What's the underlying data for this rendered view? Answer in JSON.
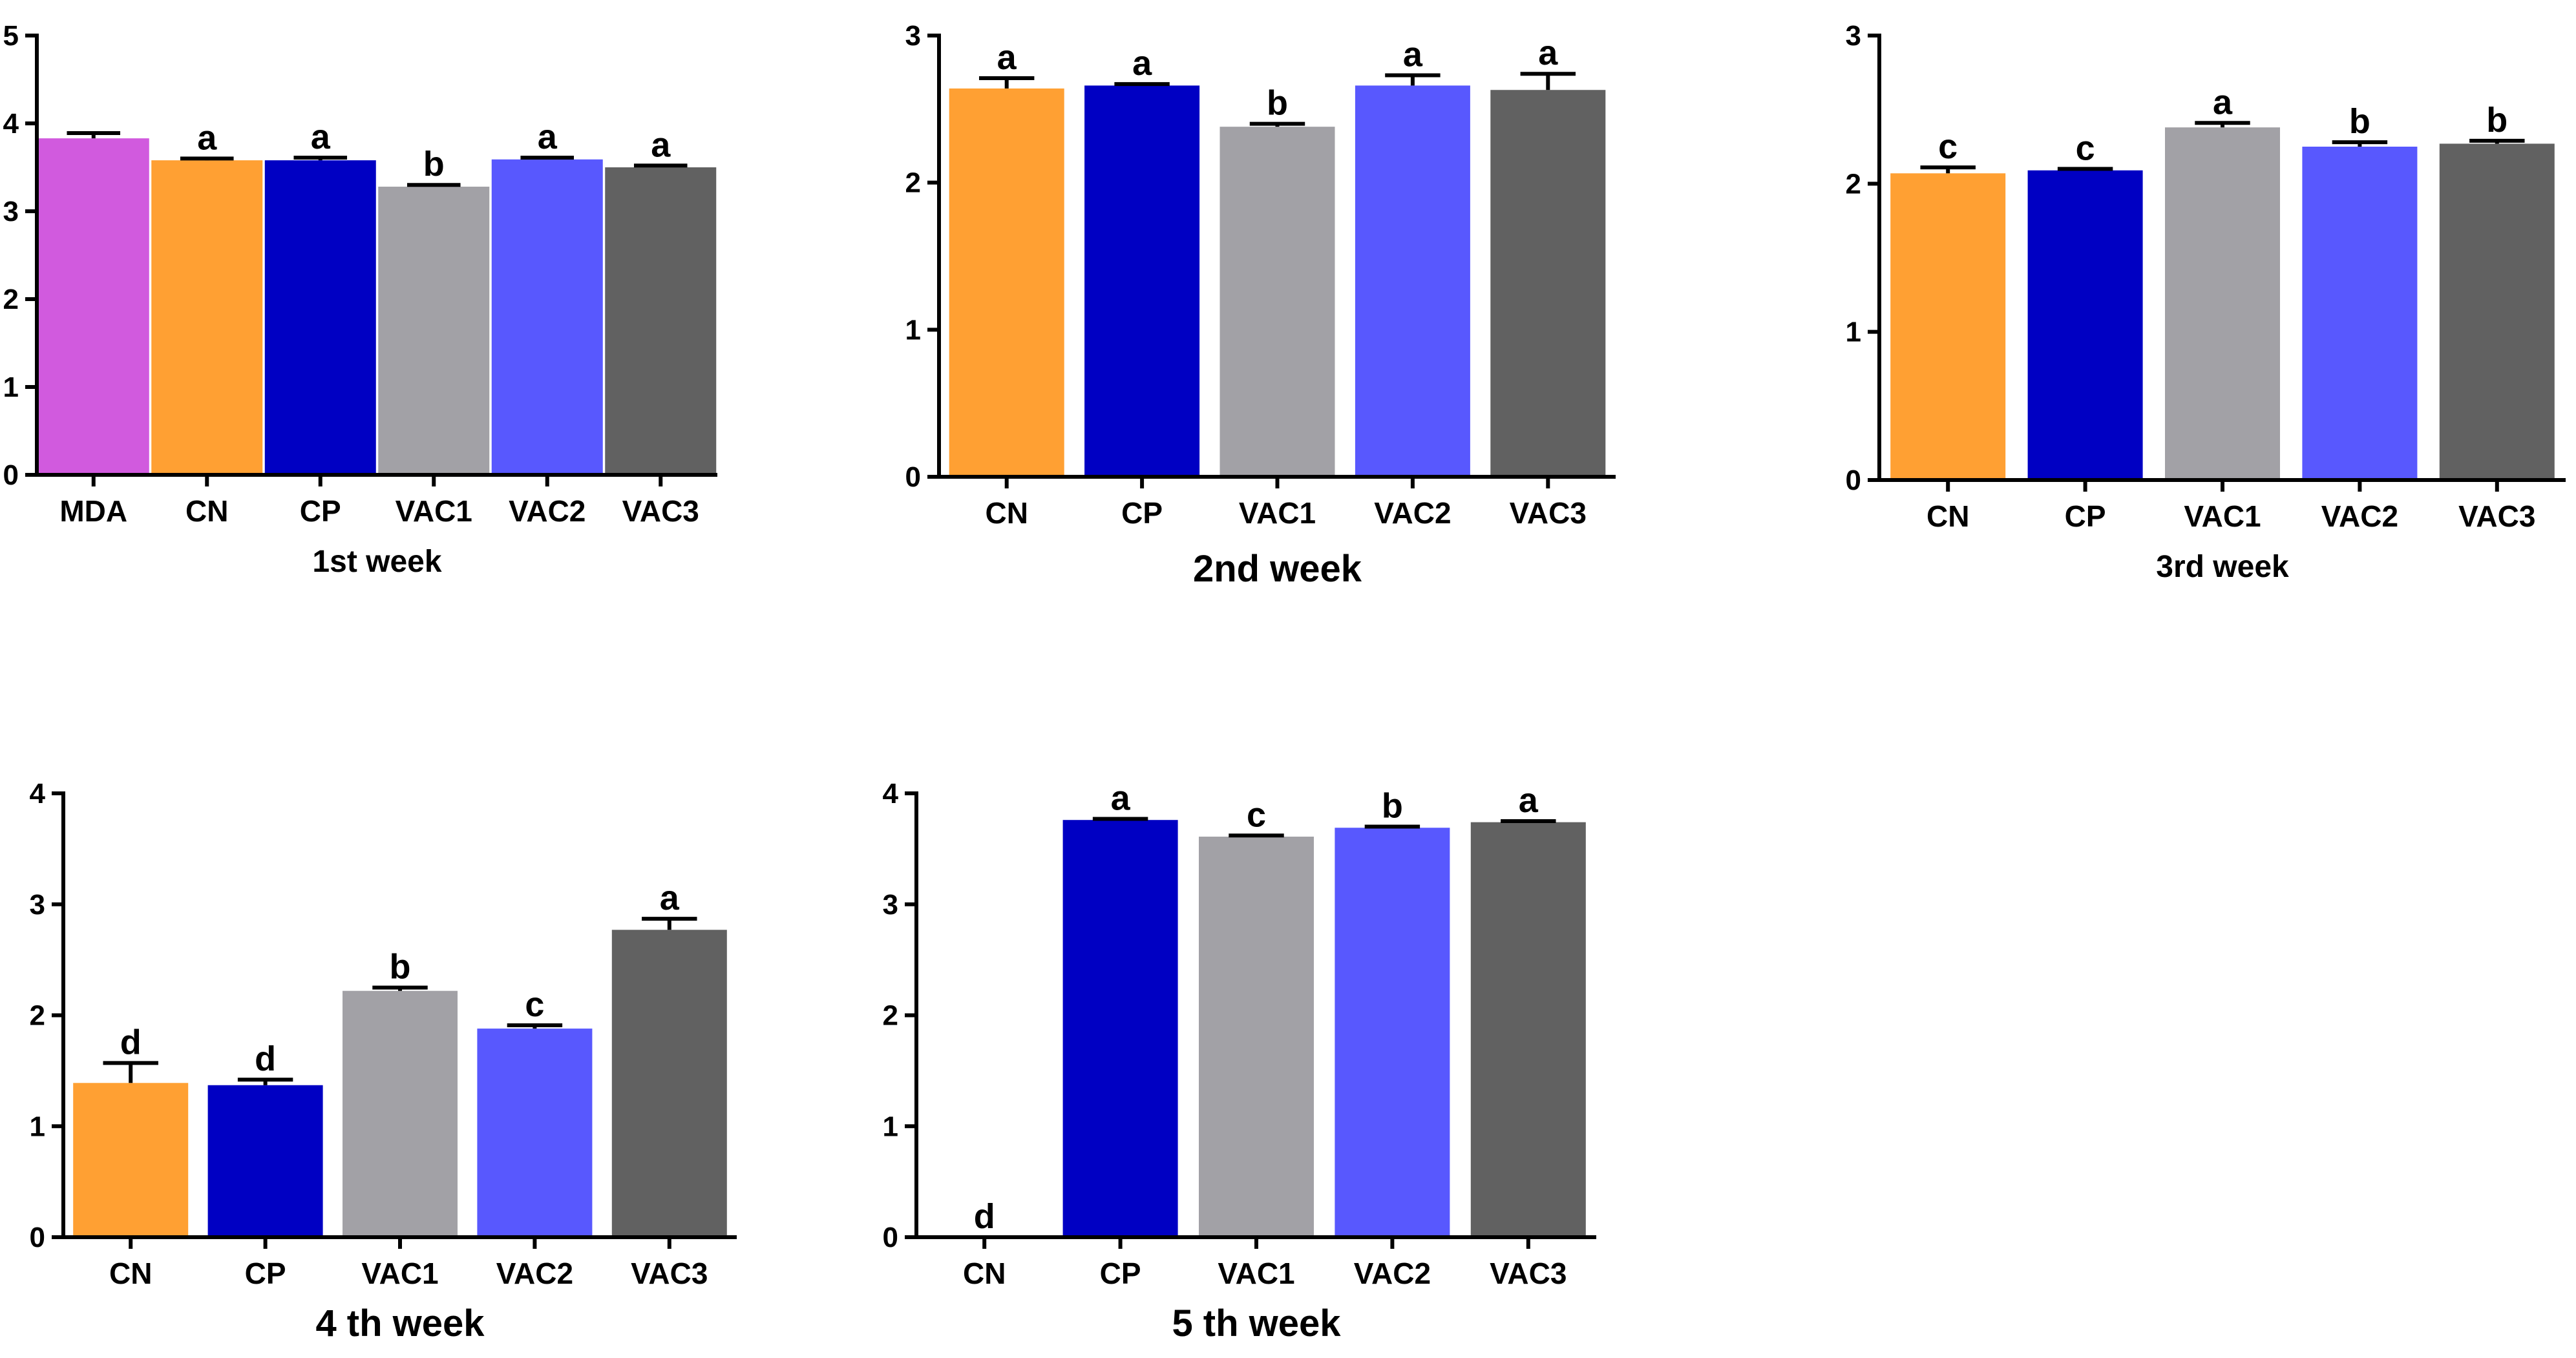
{
  "figure_title": "",
  "chart_data": [
    {
      "type": "bar",
      "title": "",
      "xlabel": "1st week",
      "ylabel": "",
      "ylim": [
        0,
        5
      ],
      "yticks": [
        0,
        1,
        2,
        3,
        4,
        5
      ],
      "categories": [
        "MDA",
        "CN",
        "CP",
        "VAC1",
        "VAC2",
        "VAC3"
      ],
      "values": [
        3.83,
        3.58,
        3.58,
        3.28,
        3.59,
        3.5
      ],
      "errors": [
        0.06,
        0.02,
        0.03,
        0.02,
        0.02,
        0.02
      ],
      "labels": [
        "",
        "a",
        "a",
        "b",
        "a",
        "a"
      ],
      "colors": [
        "#d15ade",
        "#ffa033",
        "#0000c3",
        "#a2a1a6",
        "#5858fe",
        "#616161"
      ]
    },
    {
      "type": "bar",
      "title": "",
      "xlabel": "2nd week",
      "ylabel": "",
      "ylim": [
        0,
        3
      ],
      "yticks": [
        0,
        1,
        2,
        3
      ],
      "categories": [
        "CN",
        "CP",
        "VAC1",
        "VAC2",
        "VAC3"
      ],
      "values": [
        2.64,
        2.66,
        2.38,
        2.66,
        2.63
      ],
      "errors": [
        0.07,
        0.01,
        0.02,
        0.07,
        0.11
      ],
      "labels": [
        "a",
        "a",
        "b",
        "a",
        "a"
      ],
      "colors": [
        "#ffa033",
        "#0000c3",
        "#a2a1a6",
        "#5858fe",
        "#616161"
      ]
    },
    {
      "type": "bar",
      "title": "",
      "xlabel": "3rd week",
      "ylabel": "",
      "ylim": [
        0,
        3
      ],
      "yticks": [
        0,
        1,
        2,
        3
      ],
      "categories": [
        "CN",
        "CP",
        "VAC1",
        "VAC2",
        "VAC3"
      ],
      "values": [
        2.07,
        2.09,
        2.38,
        2.25,
        2.27
      ],
      "errors": [
        0.04,
        0.01,
        0.03,
        0.03,
        0.02
      ],
      "labels": [
        "c",
        "c",
        "a",
        "b",
        "b"
      ],
      "colors": [
        "#ffa033",
        "#0000c3",
        "#a2a1a6",
        "#5858fe",
        "#616161"
      ]
    },
    {
      "type": "bar",
      "title": "",
      "xlabel": "4 th week",
      "ylabel": "",
      "ylim": [
        0,
        4
      ],
      "yticks": [
        0,
        1,
        2,
        3,
        4
      ],
      "categories": [
        "CN",
        "CP",
        "VAC1",
        "VAC2",
        "VAC3"
      ],
      "values": [
        1.39,
        1.37,
        2.22,
        1.88,
        2.77
      ],
      "errors": [
        0.18,
        0.05,
        0.03,
        0.03,
        0.1
      ],
      "labels": [
        "d",
        "d",
        "b",
        "c",
        "a"
      ],
      "colors": [
        "#ffa033",
        "#0000c3",
        "#a2a1a6",
        "#5858fe",
        "#616161"
      ]
    },
    {
      "type": "bar",
      "title": "",
      "xlabel": "5 th week",
      "ylabel": "",
      "ylim": [
        0,
        4
      ],
      "yticks": [
        0,
        1,
        2,
        3,
        4
      ],
      "categories": [
        "CN",
        "CP",
        "VAC1",
        "VAC2",
        "VAC3"
      ],
      "values": [
        0,
        3.76,
        3.61,
        3.69,
        3.74
      ],
      "errors": [
        0,
        0.01,
        0.01,
        0.01,
        0.01
      ],
      "labels": [
        "d",
        "a",
        "c",
        "b",
        "a"
      ],
      "colors": [
        "#ffa033",
        "#0000c3",
        "#a2a1a6",
        "#5858fe",
        "#616161"
      ]
    }
  ]
}
